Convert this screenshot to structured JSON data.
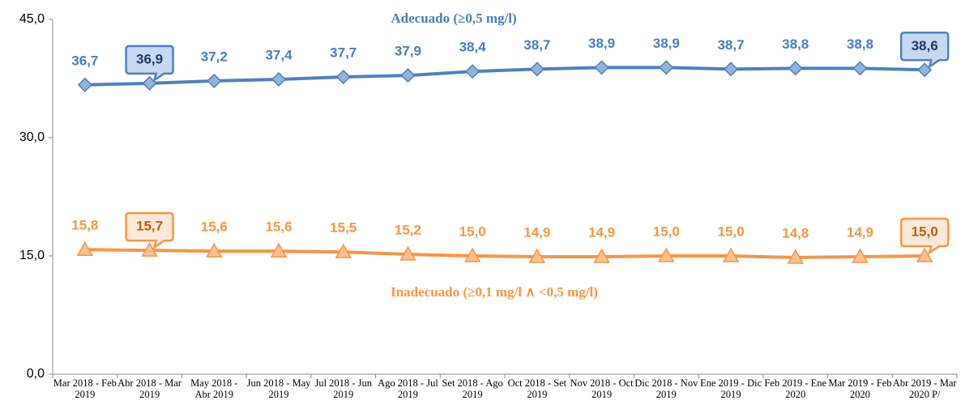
{
  "chart_data": {
    "type": "line",
    "categories": [
      "Mar 2018 - Feb 2019",
      "Abr 2018 - Mar 2019",
      "May 2018 - Abr 2019",
      "Jun 2018 - May 2019",
      "Jul 2018 - Jun 2019",
      "Ago 2018 - Jul 2019",
      "Set 2018 - Ago 2019",
      "Oct 2018 - Set 2019",
      "Nov 2018 - Oct 2019",
      "Dic 2018 - Nov 2019",
      "Ene 2019 - Dic 2019",
      "Feb 2019 - Ene 2020",
      "Mar 2019 - Feb 2020",
      "Abr 2019 - Mar 2020 P/"
    ],
    "series": [
      {
        "name": "Adecuado (≥0,5 mg/l)",
        "color": "#4f81bd",
        "values": [
          36.7,
          36.9,
          37.2,
          37.4,
          37.7,
          37.9,
          38.4,
          38.7,
          38.9,
          38.9,
          38.7,
          38.8,
          38.8,
          38.6
        ],
        "value_labels": [
          "36,7",
          "36,9",
          "37,2",
          "37,4",
          "37,7",
          "37,9",
          "38,4",
          "38,7",
          "38,9",
          "38,9",
          "38,7",
          "38,8",
          "38,8",
          "38,6"
        ]
      },
      {
        "name": "Inadecuado (≥0,1 mg/l ∧ <0,5 mg/l)",
        "color": "#f79646",
        "values": [
          15.8,
          15.7,
          15.6,
          15.6,
          15.5,
          15.2,
          15.0,
          14.9,
          14.9,
          15.0,
          15.0,
          14.8,
          14.9,
          15.0
        ],
        "value_labels": [
          "15,8",
          "15,7",
          "15,6",
          "15,6",
          "15,5",
          "15,2",
          "15,0",
          "14,9",
          "14,9",
          "15,0",
          "15,0",
          "14,8",
          "14,9",
          "15,0"
        ]
      }
    ],
    "ylim": [
      0,
      45
    ],
    "yticks": [
      {
        "value": 0,
        "label": "0,0"
      },
      {
        "value": 15,
        "label": "15,0"
      },
      {
        "value": 30,
        "label": "30,0"
      },
      {
        "value": 45,
        "label": "45,0"
      }
    ],
    "grid": false
  }
}
